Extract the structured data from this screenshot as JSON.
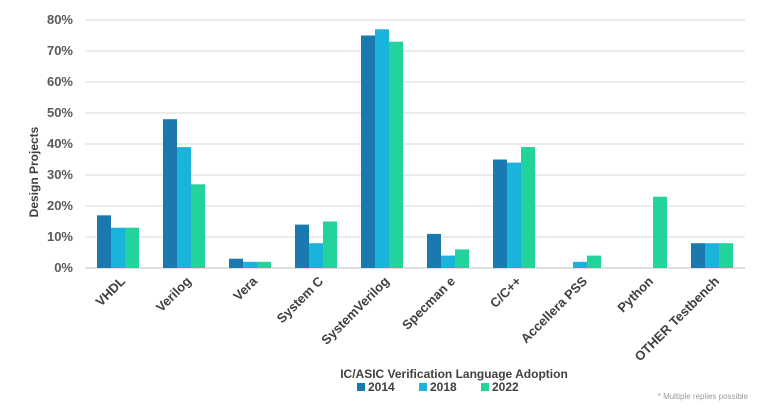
{
  "chart_data": {
    "type": "bar",
    "title": "",
    "xlabel": "IC/ASIC Verification Language Adoption",
    "ylabel": "Design Projects",
    "ylim": [
      0,
      80
    ],
    "yticks": [
      0,
      10,
      20,
      30,
      40,
      50,
      60,
      70,
      80
    ],
    "ytick_labels": [
      "0%",
      "10%",
      "20%",
      "30%",
      "40%",
      "50%",
      "60%",
      "70%",
      "80%"
    ],
    "grid": true,
    "legend_position": "bottom",
    "categories": [
      "VHDL",
      "Verilog",
      "Vera",
      "System C",
      "SystemVerilog",
      "Specman e",
      "C/C++",
      "Accellera PSS",
      "Python",
      "OTHER Testbench"
    ],
    "series": [
      {
        "name": "2014",
        "color": "#1a7aaf",
        "values": [
          17,
          48,
          3,
          14,
          75,
          11,
          35,
          0,
          0,
          8
        ]
      },
      {
        "name": "2018",
        "color": "#1ab3dc",
        "values": [
          13,
          39,
          2,
          8,
          77,
          4,
          34,
          2,
          0,
          8
        ]
      },
      {
        "name": "2022",
        "color": "#22d39b",
        "values": [
          13,
          27,
          2,
          15,
          73,
          6,
          39,
          4,
          23,
          8
        ]
      }
    ],
    "footnote": "* Multiple replies possible"
  }
}
